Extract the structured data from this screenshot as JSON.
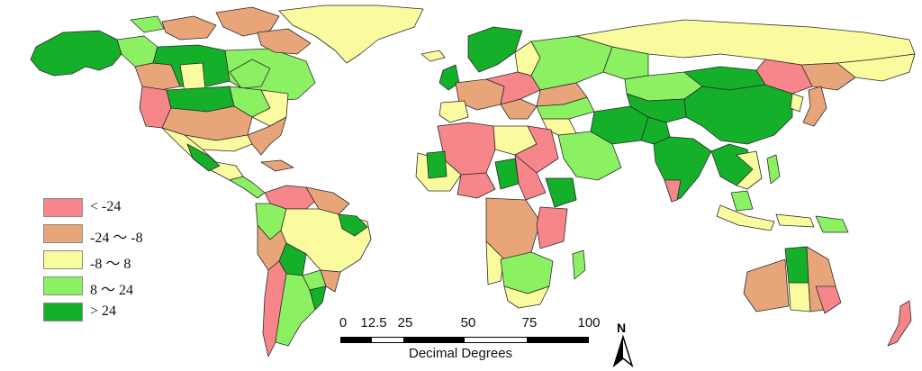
{
  "map": {
    "colors": {
      "ocean": "#ffffff",
      "ice": "#ffffff",
      "border": "#303030"
    }
  },
  "legend": {
    "classes": [
      {
        "label": "< -24",
        "color": "#f7868a"
      },
      {
        "label": "-24 ～ -8",
        "color": "#e8a57a"
      },
      {
        "label": "-8 ～ 8",
        "color": "#fafa9e"
      },
      {
        "label": "8 ～ 24",
        "color": "#8cf063"
      },
      {
        "label": "> 24",
        "color": "#14b02a"
      }
    ]
  },
  "scale_bar": {
    "ticks": [
      "0",
      "12.5",
      "25",
      "50",
      "75",
      "100"
    ],
    "units": "Decimal Degrees"
  },
  "north_arrow": {
    "label": "N"
  }
}
